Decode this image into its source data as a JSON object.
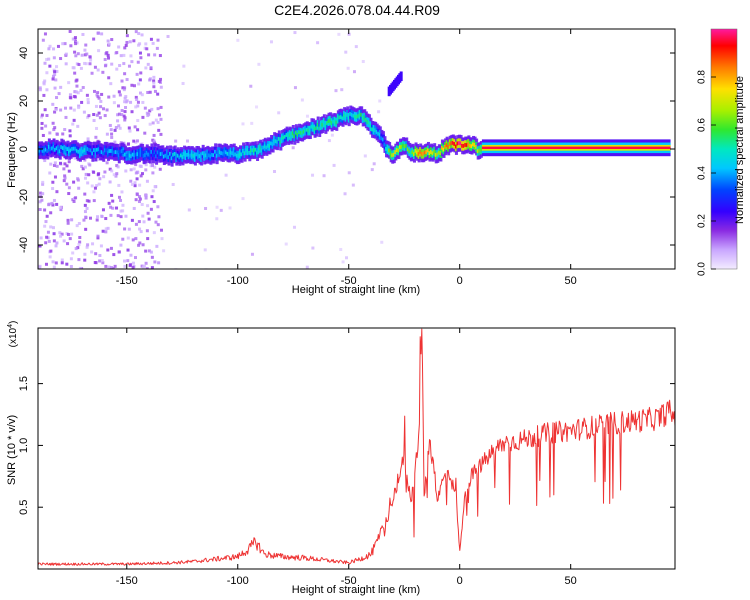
{
  "page_title": "C2E4.2026.078.04.44.R09",
  "chart_data": [
    {
      "type": "heatmap",
      "name": "spectrogram",
      "xlabel": "Height of straight line (km)",
      "ylabel": "Frequency (Hz)",
      "xlim": [
        -190,
        97
      ],
      "ylim": [
        -50,
        50
      ],
      "xticks": [
        -150,
        -100,
        -50,
        0,
        50
      ],
      "xtick_labels": [
        "-150",
        "-100",
        "-50",
        "0",
        "50"
      ],
      "yticks": [
        -40,
        -20,
        0,
        20,
        40
      ],
      "ytick_labels": [
        "-40",
        "-20",
        "0",
        "20",
        "40"
      ],
      "colorbar": {
        "label": "Normalized spectral amplitude",
        "range": [
          0,
          1
        ],
        "ticks": [
          0.0,
          0.2,
          0.4,
          0.6,
          0.8
        ],
        "tick_labels": [
          "0.0",
          "0.2",
          "0.4",
          "0.6",
          "0.8"
        ],
        "colormap": [
          "#f0e8ff",
          "#c9a6ff",
          "#8a2be2",
          "#3300ff",
          "#0044ff",
          "#00c8ff",
          "#00e8c0",
          "#2fe82f",
          "#a8f000",
          "#ffe000",
          "#ff7a00",
          "#ff0000",
          "#ff1aa0"
        ]
      },
      "ridge": {
        "x": [
          -190,
          -180,
          -170,
          -160,
          -150,
          -140,
          -130,
          -120,
          -110,
          -100,
          -92,
          -85,
          -78,
          -72,
          -65,
          -58,
          -52,
          -48,
          -44,
          -40,
          -37,
          -34,
          -30,
          -26,
          -22,
          -18,
          -14,
          -10,
          -6,
          -3,
          0,
          3,
          6,
          9,
          10
        ],
        "y": [
          0,
          0,
          -1,
          -1,
          -2,
          -2,
          -3,
          -3,
          -2,
          -2,
          -1,
          2,
          5,
          7,
          9,
          11,
          13,
          14,
          14,
          9,
          7,
          2,
          -3,
          2,
          -1,
          -2,
          -1,
          -2,
          1,
          2,
          2,
          1,
          2,
          -1,
          0
        ],
        "amp": [
          0.3,
          0.35,
          0.4,
          0.3,
          0.35,
          0.3,
          0.35,
          0.4,
          0.35,
          0.4,
          0.45,
          0.4,
          0.45,
          0.5,
          0.45,
          0.5,
          0.45,
          0.4,
          0.5,
          0.45,
          0.4,
          0.35,
          0.7,
          0.6,
          0.5,
          0.8,
          0.7,
          0.6,
          0.8,
          0.85,
          0.9,
          0.85,
          0.7,
          0.6,
          0.6
        ]
      },
      "tone": {
        "x": [
          10,
          95
        ],
        "y": 0.5,
        "amp": 0.95
      },
      "branch": {
        "x": [
          -32,
          -26
        ],
        "y": [
          24,
          31
        ],
        "amp": 0.4
      }
    },
    {
      "type": "line",
      "name": "snr",
      "xlabel": "Height of straight line (km)",
      "ylabel": "SNR (10 * v/v)",
      "multiplier": "(x10^4)",
      "multiplier_base": "(x10",
      "multiplier_exp": "4",
      "multiplier_tail": ")",
      "xlim": [
        -190,
        97
      ],
      "ylim": [
        0,
        1.95
      ],
      "xticks": [
        -150,
        -100,
        -50,
        0,
        50
      ],
      "xtick_labels": [
        "-150",
        "-100",
        "-50",
        "0",
        "50"
      ],
      "yticks": [
        0.5,
        1.0,
        1.5
      ],
      "ytick_labels": [
        "0.5",
        "1.0",
        "1.5"
      ],
      "color": "#ee3333",
      "series": [
        {
          "x": [
            -190,
            -170,
            -150,
            -130,
            -120,
            -110,
            -100,
            -95,
            -92,
            -88,
            -80,
            -70,
            -60,
            -55,
            -50,
            -45,
            -40,
            -36,
            -32,
            -28,
            -25,
            -22,
            -20,
            -18,
            -17,
            -16,
            -14,
            -12,
            -10,
            -8,
            -5,
            -2,
            0,
            2,
            5,
            10,
            15,
            20,
            30,
            40,
            50,
            60,
            70,
            80,
            90,
            94,
            97
          ],
          "y": [
            0.04,
            0.04,
            0.04,
            0.05,
            0.06,
            0.08,
            0.1,
            0.16,
            0.22,
            0.12,
            0.1,
            0.09,
            0.07,
            0.06,
            0.05,
            0.08,
            0.12,
            0.25,
            0.45,
            0.7,
            0.9,
            0.55,
            0.8,
            1.2,
            1.95,
            0.55,
            1.0,
            0.9,
            0.55,
            0.7,
            0.8,
            0.6,
            0.15,
            0.55,
            0.75,
            0.85,
            0.95,
            1.02,
            1.05,
            1.1,
            1.12,
            1.15,
            1.18,
            1.2,
            1.22,
            1.28,
            1.22
          ]
        }
      ]
    }
  ]
}
